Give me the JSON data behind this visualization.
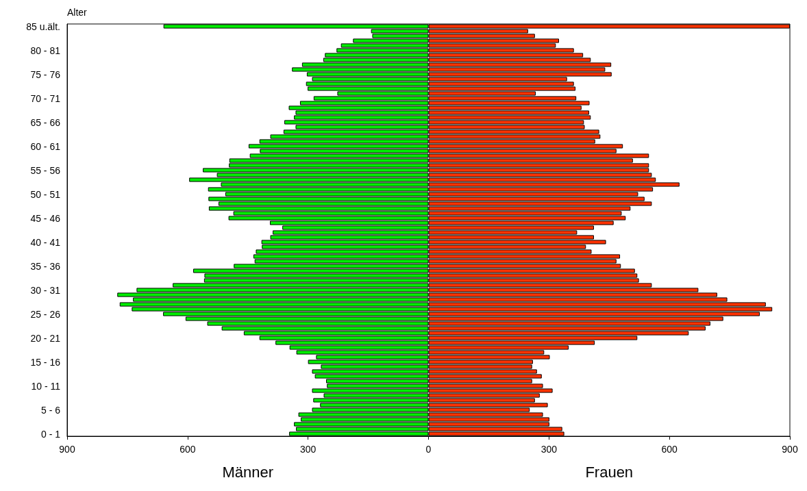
{
  "chart_data": {
    "type": "bar",
    "orientation": "horizontal",
    "stacked": true,
    "ylabel": "Alter",
    "categories": [
      "85 u.ält.",
      null,
      null,
      null,
      null,
      "80 - 81",
      null,
      null,
      null,
      null,
      "75 - 76",
      null,
      null,
      null,
      null,
      "70 - 71",
      null,
      null,
      null,
      null,
      "65 - 66",
      null,
      null,
      null,
      null,
      "60 - 61",
      null,
      null,
      null,
      null,
      "55 - 56",
      null,
      null,
      null,
      null,
      "50 - 51",
      null,
      null,
      null,
      null,
      "45 - 46",
      null,
      null,
      null,
      null,
      "40 - 41",
      null,
      null,
      null,
      null,
      "35 - 36",
      null,
      null,
      null,
      null,
      "30 - 31",
      null,
      null,
      null,
      null,
      "25 - 26",
      null,
      null,
      null,
      null,
      "20 - 21",
      null,
      null,
      null,
      null,
      "15 - 16",
      null,
      null,
      null,
      null,
      "10 - 11",
      null,
      null,
      null,
      null,
      "5 - 6",
      null,
      null,
      null,
      null,
      "0 - 1"
    ],
    "series": [
      {
        "name": "Männer",
        "color": "#00ee00",
        "values": [
          -660,
          -143,
          -140,
          -188,
          -218,
          -229,
          -258,
          -262,
          -315,
          -340,
          -303,
          -290,
          -305,
          -301,
          -227,
          -286,
          -320,
          -348,
          -331,
          -335,
          -359,
          -331,
          -361,
          -394,
          -421,
          -448,
          -420,
          -445,
          -496,
          -497,
          -562,
          -527,
          -596,
          -517,
          -549,
          -506,
          -548,
          -523,
          -547,
          -486,
          -498,
          -395,
          -364,
          -388,
          -394,
          -416,
          -415,
          -430,
          -436,
          -433,
          -485,
          -586,
          -558,
          -559,
          -637,
          -727,
          -775,
          -736,
          -769,
          -739,
          -661,
          -605,
          -551,
          -515,
          -460,
          -421,
          -381,
          -346,
          -329,
          -280,
          -300,
          -268,
          -290,
          -283,
          -255,
          -253,
          -290,
          -261,
          -287,
          -270,
          -290,
          -324,
          -318,
          -335,
          -330,
          -347
        ]
      },
      {
        "name": "Frauen",
        "color": "#ff3300",
        "values": [
          900,
          248,
          265,
          325,
          317,
          362,
          385,
          404,
          455,
          440,
          456,
          345,
          362,
          366,
          267,
          368,
          401,
          381,
          400,
          404,
          387,
          389,
          425,
          428,
          415,
          484,
          468,
          549,
          509,
          549,
          549,
          556,
          566,
          625,
          559,
          522,
          538,
          556,
          503,
          481,
          491,
          461,
          412,
          370,
          412,
          442,
          392,
          406,
          477,
          468,
          479,
          514,
          520,
          524,
          556,
          672,
          719,
          744,
          840,
          856,
          825,
          734,
          702,
          690,
          648,
          520,
          414,
          349,
          288,
          302,
          260,
          258,
          270,
          282,
          258,
          285,
          309,
          277,
          265,
          297,
          252,
          285,
          301,
          301,
          333,
          338
        ]
      }
    ],
    "xlim": [
      -900,
      900
    ],
    "xticks": [
      {
        "value": -900,
        "label": "900"
      },
      {
        "value": -600,
        "label": "600"
      },
      {
        "value": -300,
        "label": "300"
      },
      0,
      300,
      600,
      900
    ],
    "grid": false,
    "legend": false
  }
}
